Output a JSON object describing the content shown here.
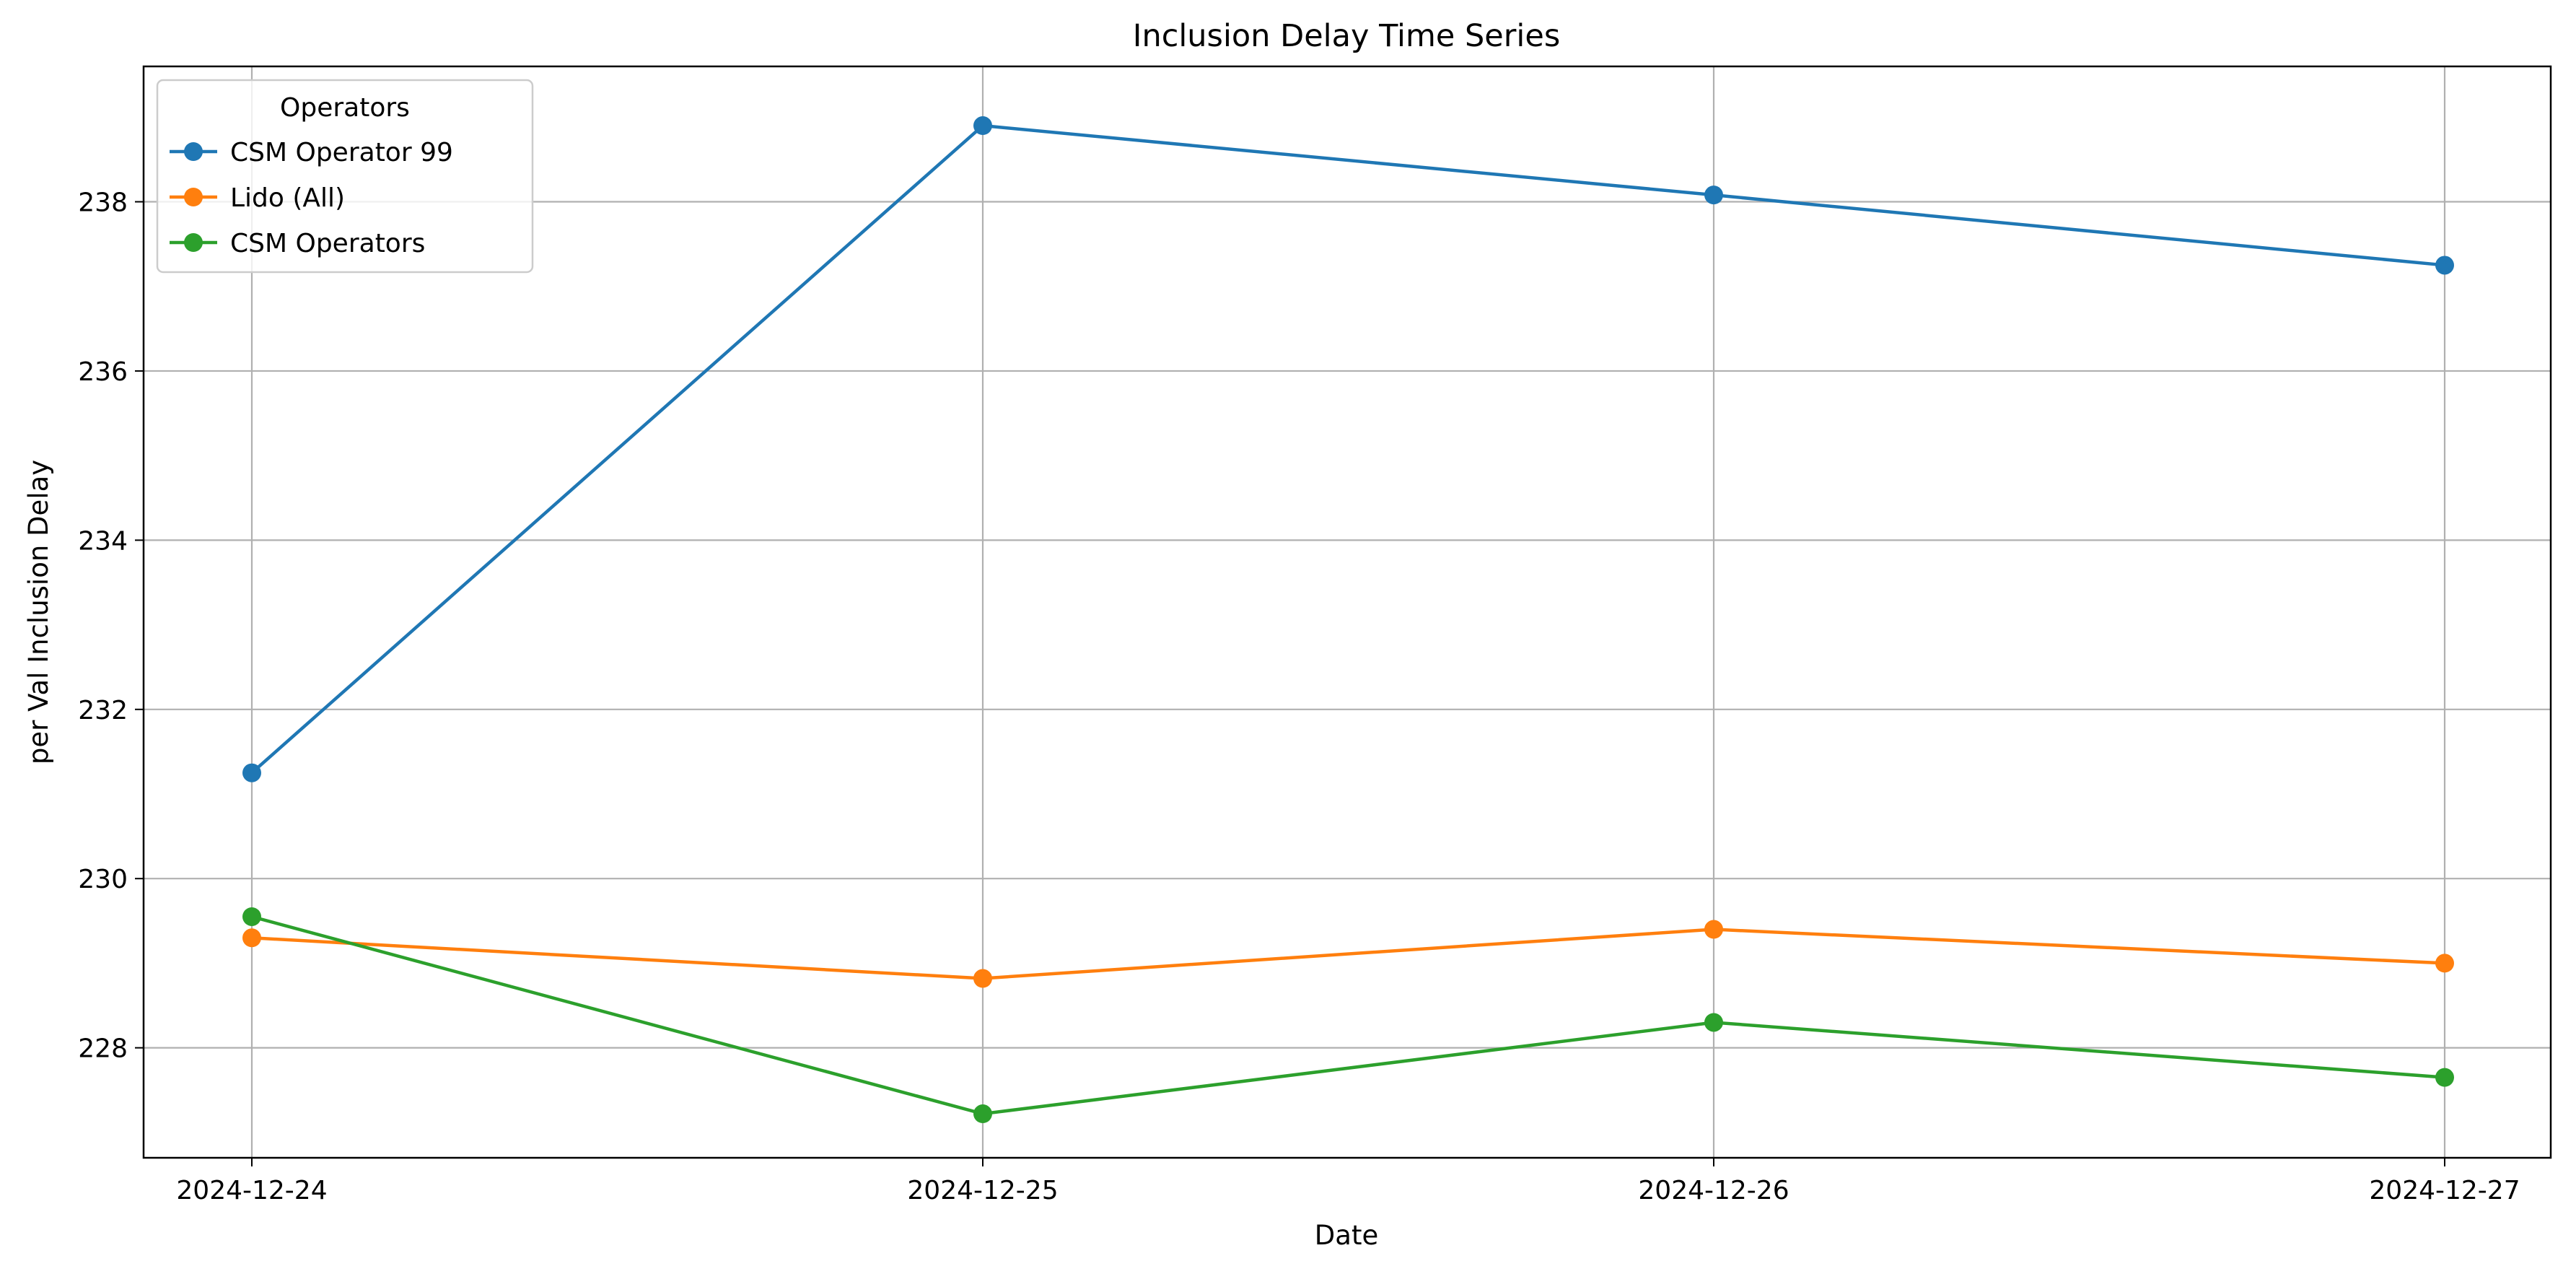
{
  "chart_data": {
    "type": "line",
    "title": "Inclusion Delay Time Series",
    "xlabel": "Date",
    "ylabel": "per Val Inclusion Delay",
    "x": [
      "2024-12-24",
      "2024-12-25",
      "2024-12-26",
      "2024-12-27"
    ],
    "ylim": [
      226.7,
      239.6
    ],
    "yticks": [
      228,
      230,
      232,
      234,
      236,
      238
    ],
    "grid": true,
    "legend": {
      "title": "Operators",
      "placement": "top-left"
    },
    "series": [
      {
        "name": "CSM Operator 99",
        "color": "#1f77b4",
        "values": [
          231.25,
          238.9,
          238.08,
          237.25
        ]
      },
      {
        "name": "Lido (All)",
        "color": "#ff7f0e",
        "values": [
          229.3,
          228.82,
          229.4,
          229.0
        ]
      },
      {
        "name": "CSM Operators",
        "color": "#2ca02c",
        "values": [
          229.55,
          227.22,
          228.3,
          227.65
        ]
      }
    ]
  }
}
